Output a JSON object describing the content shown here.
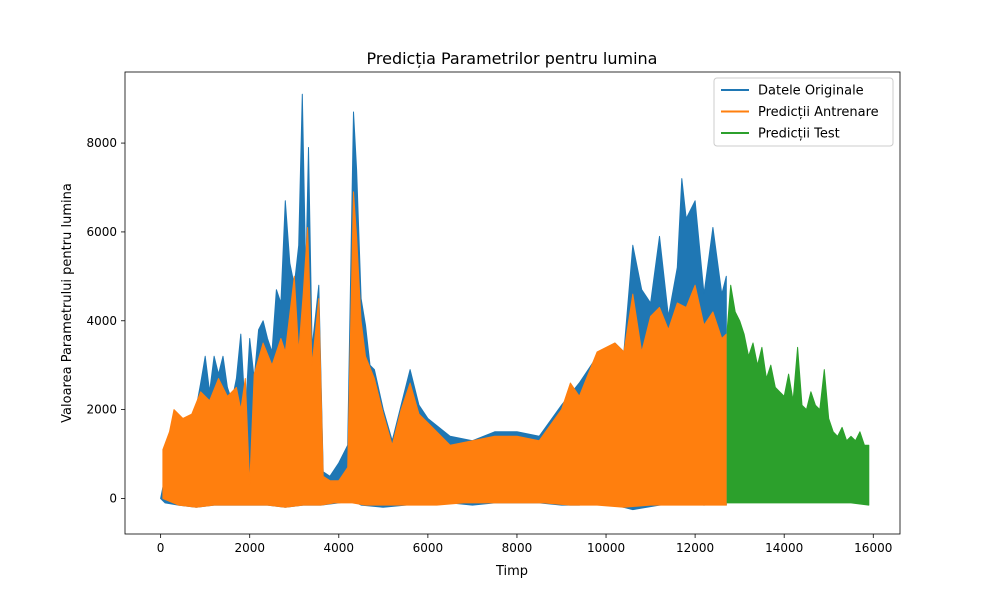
{
  "chart_data": {
    "type": "line",
    "title": "Predicția Parametrilor pentru lumina",
    "xlabel": "Timp",
    "ylabel": "Valoarea Parametrului pentru lumina",
    "xlim": [
      -800,
      16600
    ],
    "ylim": [
      -800,
      9600
    ],
    "x_ticks": [
      0,
      2000,
      4000,
      6000,
      8000,
      10000,
      12000,
      14000,
      16000
    ],
    "x_tick_labels": [
      "0",
      "2000",
      "4000",
      "6000",
      "8000",
      "10000",
      "12000",
      "14000",
      "16000"
    ],
    "y_ticks": [
      0,
      2000,
      4000,
      6000,
      8000
    ],
    "y_tick_labels": [
      "0",
      "2000",
      "4000",
      "6000",
      "8000"
    ],
    "grid": false,
    "legend_position": "upper right",
    "series": [
      {
        "name": "Datele Originale",
        "color": "#1f77b4",
        "points": [
          [
            0,
            0
          ],
          [
            100,
            500
          ],
          [
            300,
            1100
          ],
          [
            500,
            1600
          ],
          [
            700,
            1500
          ],
          [
            900,
            2600
          ],
          [
            1000,
            3200
          ],
          [
            1100,
            2400
          ],
          [
            1200,
            3200
          ],
          [
            1300,
            2800
          ],
          [
            1400,
            3200
          ],
          [
            1500,
            2500
          ],
          [
            1600,
            2200
          ],
          [
            1700,
            2700
          ],
          [
            1800,
            3700
          ],
          [
            1900,
            1900
          ],
          [
            2000,
            3600
          ],
          [
            2100,
            2700
          ],
          [
            2200,
            3800
          ],
          [
            2300,
            4000
          ],
          [
            2400,
            3600
          ],
          [
            2500,
            3300
          ],
          [
            2600,
            4700
          ],
          [
            2700,
            4400
          ],
          [
            2800,
            6700
          ],
          [
            2900,
            5300
          ],
          [
            3000,
            4800
          ],
          [
            3100,
            5700
          ],
          [
            3180,
            9100
          ],
          [
            3260,
            5000
          ],
          [
            3320,
            7900
          ],
          [
            3400,
            3400
          ],
          [
            3550,
            4800
          ],
          [
            3650,
            600
          ],
          [
            3800,
            500
          ],
          [
            4000,
            800
          ],
          [
            4200,
            1200
          ],
          [
            4330,
            8700
          ],
          [
            4400,
            7400
          ],
          [
            4500,
            4500
          ],
          [
            4600,
            3900
          ],
          [
            4700,
            3000
          ],
          [
            4800,
            2900
          ],
          [
            5000,
            2000
          ],
          [
            5200,
            1300
          ],
          [
            5400,
            2100
          ],
          [
            5600,
            2900
          ],
          [
            5800,
            2100
          ],
          [
            6000,
            1800
          ],
          [
            6500,
            1400
          ],
          [
            7000,
            1300
          ],
          [
            7500,
            1500
          ],
          [
            8000,
            1500
          ],
          [
            8500,
            1400
          ],
          [
            9000,
            2100
          ],
          [
            9400,
            2600
          ],
          [
            9800,
            3200
          ],
          [
            10200,
            3500
          ],
          [
            10400,
            3300
          ],
          [
            10600,
            5700
          ],
          [
            10800,
            4700
          ],
          [
            11000,
            4400
          ],
          [
            11200,
            5900
          ],
          [
            11400,
            4100
          ],
          [
            11600,
            5200
          ],
          [
            11700,
            7200
          ],
          [
            11800,
            6300
          ],
          [
            12000,
            6700
          ],
          [
            12200,
            4600
          ],
          [
            12400,
            6100
          ],
          [
            12600,
            4600
          ],
          [
            12700,
            5000
          ],
          [
            12700,
            -150
          ],
          [
            12600,
            -100
          ],
          [
            12200,
            -150
          ],
          [
            11800,
            -100
          ],
          [
            11200,
            -150
          ],
          [
            10600,
            -250
          ],
          [
            10200,
            -150
          ],
          [
            9800,
            -100
          ],
          [
            9400,
            -150
          ],
          [
            9000,
            -150
          ],
          [
            8500,
            -100
          ],
          [
            8000,
            -100
          ],
          [
            7500,
            -100
          ],
          [
            7000,
            -150
          ],
          [
            6500,
            -100
          ],
          [
            6000,
            -100
          ],
          [
            5500,
            -150
          ],
          [
            5000,
            -200
          ],
          [
            4500,
            -150
          ],
          [
            4300,
            -50
          ],
          [
            4000,
            -100
          ],
          [
            3600,
            -150
          ],
          [
            3200,
            -150
          ],
          [
            2800,
            -200
          ],
          [
            2400,
            -150
          ],
          [
            2000,
            -150
          ],
          [
            1600,
            -150
          ],
          [
            1200,
            -150
          ],
          [
            800,
            -200
          ],
          [
            400,
            -150
          ],
          [
            100,
            -100
          ],
          [
            0,
            0
          ]
        ]
      },
      {
        "name": "Predicții Antrenare",
        "color": "#ff7f0e",
        "points": [
          [
            50,
            1100
          ],
          [
            200,
            1500
          ],
          [
            300,
            2000
          ],
          [
            500,
            1800
          ],
          [
            700,
            1900
          ],
          [
            900,
            2400
          ],
          [
            1100,
            2200
          ],
          [
            1300,
            2700
          ],
          [
            1500,
            2300
          ],
          [
            1700,
            2500
          ],
          [
            1800,
            2000
          ],
          [
            1900,
            2700
          ],
          [
            2000,
            300
          ],
          [
            2100,
            2800
          ],
          [
            2300,
            3500
          ],
          [
            2500,
            3000
          ],
          [
            2700,
            3600
          ],
          [
            2800,
            3300
          ],
          [
            3000,
            5000
          ],
          [
            3100,
            3300
          ],
          [
            3200,
            4600
          ],
          [
            3300,
            6100
          ],
          [
            3400,
            3000
          ],
          [
            3550,
            4500
          ],
          [
            3650,
            500
          ],
          [
            3800,
            400
          ],
          [
            4000,
            400
          ],
          [
            4200,
            700
          ],
          [
            4330,
            6900
          ],
          [
            4400,
            5900
          ],
          [
            4500,
            4000
          ],
          [
            4600,
            3200
          ],
          [
            4800,
            2700
          ],
          [
            5000,
            1900
          ],
          [
            5200,
            1200
          ],
          [
            5400,
            2000
          ],
          [
            5600,
            2600
          ],
          [
            5800,
            1900
          ],
          [
            6000,
            1700
          ],
          [
            6500,
            1200
          ],
          [
            7000,
            1300
          ],
          [
            7500,
            1400
          ],
          [
            8000,
            1400
          ],
          [
            8500,
            1300
          ],
          [
            9000,
            2000
          ],
          [
            9200,
            2600
          ],
          [
            9400,
            2300
          ],
          [
            9800,
            3300
          ],
          [
            10200,
            3500
          ],
          [
            10400,
            3300
          ],
          [
            10600,
            4600
          ],
          [
            10800,
            3300
          ],
          [
            11000,
            4100
          ],
          [
            11200,
            4300
          ],
          [
            11400,
            3800
          ],
          [
            11600,
            4400
          ],
          [
            11800,
            4300
          ],
          [
            12000,
            4800
          ],
          [
            12200,
            3900
          ],
          [
            12400,
            4200
          ],
          [
            12600,
            3600
          ],
          [
            12700,
            3700
          ],
          [
            12700,
            -150
          ],
          [
            12200,
            -150
          ],
          [
            11600,
            -150
          ],
          [
            11000,
            -150
          ],
          [
            10400,
            -200
          ],
          [
            9800,
            -150
          ],
          [
            9200,
            -150
          ],
          [
            8600,
            -100
          ],
          [
            8000,
            -100
          ],
          [
            7400,
            -100
          ],
          [
            6800,
            -100
          ],
          [
            6200,
            -150
          ],
          [
            5600,
            -150
          ],
          [
            5000,
            -150
          ],
          [
            4600,
            -150
          ],
          [
            4300,
            -100
          ],
          [
            3900,
            -100
          ],
          [
            3600,
            -150
          ],
          [
            3200,
            -150
          ],
          [
            2800,
            -200
          ],
          [
            2400,
            -150
          ],
          [
            2000,
            -150
          ],
          [
            1600,
            -150
          ],
          [
            1200,
            -150
          ],
          [
            800,
            -200
          ],
          [
            400,
            -150
          ],
          [
            50,
            0
          ]
        ]
      },
      {
        "name": "Predicții Test",
        "color": "#2ca02c",
        "points": [
          [
            12720,
            3800
          ],
          [
            12800,
            4800
          ],
          [
            12900,
            4200
          ],
          [
            13000,
            4000
          ],
          [
            13100,
            3700
          ],
          [
            13200,
            3200
          ],
          [
            13300,
            3500
          ],
          [
            13400,
            3000
          ],
          [
            13500,
            3400
          ],
          [
            13600,
            2700
          ],
          [
            13700,
            3000
          ],
          [
            13800,
            2500
          ],
          [
            13900,
            2400
          ],
          [
            14000,
            2300
          ],
          [
            14100,
            2800
          ],
          [
            14200,
            2200
          ],
          [
            14300,
            3400
          ],
          [
            14400,
            2100
          ],
          [
            14500,
            2000
          ],
          [
            14600,
            2400
          ],
          [
            14700,
            2100
          ],
          [
            14800,
            2000
          ],
          [
            14900,
            2900
          ],
          [
            15000,
            1800
          ],
          [
            15100,
            1500
          ],
          [
            15200,
            1400
          ],
          [
            15300,
            1600
          ],
          [
            15400,
            1300
          ],
          [
            15500,
            1400
          ],
          [
            15600,
            1300
          ],
          [
            15700,
            1500
          ],
          [
            15800,
            1200
          ],
          [
            15900,
            1200
          ],
          [
            15900,
            -150
          ],
          [
            15500,
            -100
          ],
          [
            15000,
            -100
          ],
          [
            14500,
            -100
          ],
          [
            14000,
            -100
          ],
          [
            13500,
            -100
          ],
          [
            13000,
            -100
          ],
          [
            12720,
            -100
          ]
        ]
      }
    ]
  }
}
